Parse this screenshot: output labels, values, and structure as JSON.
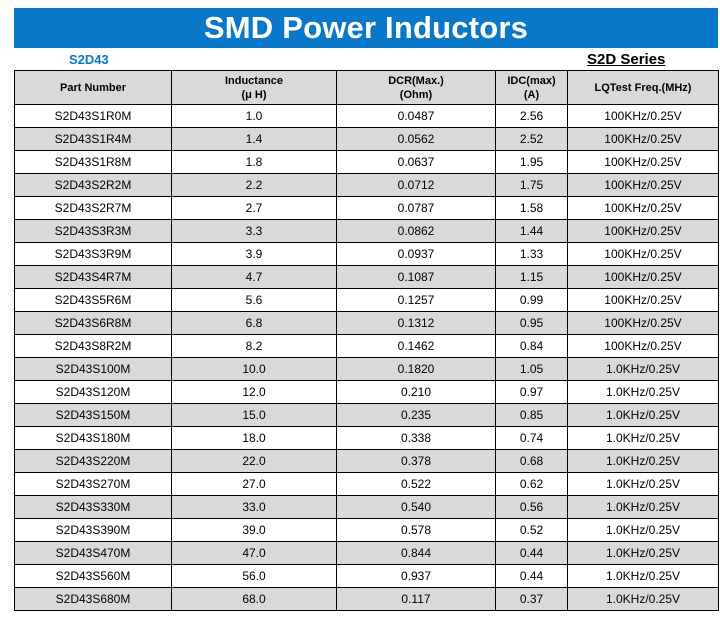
{
  "header": {
    "title": "SMD Power Inductors",
    "model_code": "S2D43",
    "series": "S2D Series"
  },
  "table": {
    "columns": [
      {
        "line1": "Part Number",
        "line2": ""
      },
      {
        "line1": "Inductance",
        "line2": "(μ H)"
      },
      {
        "line1": "DCR(Max.)",
        "line2": "(Ohm)"
      },
      {
        "line1": "IDC(max)",
        "line2": "(A)"
      },
      {
        "line1": "LQTest Freq.(MHz)",
        "line2": ""
      }
    ],
    "rows": [
      [
        "S2D43S1R0M",
        "1.0",
        "0.0487",
        "2.56",
        "100KHz/0.25V"
      ],
      [
        "S2D43S1R4M",
        "1.4",
        "0.0562",
        "2.52",
        "100KHz/0.25V"
      ],
      [
        "S2D43S1R8M",
        "1.8",
        "0.0637",
        "1.95",
        "100KHz/0.25V"
      ],
      [
        "S2D43S2R2M",
        "2.2",
        "0.0712",
        "1.75",
        "100KHz/0.25V"
      ],
      [
        "S2D43S2R7M",
        "2.7",
        "0.0787",
        "1.58",
        "100KHz/0.25V"
      ],
      [
        "S2D43S3R3M",
        "3.3",
        "0.0862",
        "1.44",
        "100KHz/0.25V"
      ],
      [
        "S2D43S3R9M",
        "3.9",
        "0.0937",
        "1.33",
        "100KHz/0.25V"
      ],
      [
        "S2D43S4R7M",
        "4.7",
        "0.1087",
        "1.15",
        "100KHz/0.25V"
      ],
      [
        "S2D43S5R6M",
        "5.6",
        "0.1257",
        "0.99",
        "100KHz/0.25V"
      ],
      [
        "S2D43S6R8M",
        "6.8",
        "0.1312",
        "0.95",
        "100KHz/0.25V"
      ],
      [
        "S2D43S8R2M",
        "8.2",
        "0.1462",
        "0.84",
        "100KHz/0.25V"
      ],
      [
        "S2D43S100M",
        "10.0",
        "0.1820",
        "1.05",
        "1.0KHz/0.25V"
      ],
      [
        "S2D43S120M",
        "12.0",
        "0.210",
        "0.97",
        "1.0KHz/0.25V"
      ],
      [
        "S2D43S150M",
        "15.0",
        "0.235",
        "0.85",
        "1.0KHz/0.25V"
      ],
      [
        "S2D43S180M",
        "18.0",
        "0.338",
        "0.74",
        "1.0KHz/0.25V"
      ],
      [
        "S2D43S220M",
        "22.0",
        "0.378",
        "0.68",
        "1.0KHz/0.25V"
      ],
      [
        "S2D43S270M",
        "27.0",
        "0.522",
        "0.62",
        "1.0KHz/0.25V"
      ],
      [
        "S2D43S330M",
        "33.0",
        "0.540",
        "0.56",
        "1.0KHz/0.25V"
      ],
      [
        "S2D43S390M",
        "39.0",
        "0.578",
        "0.52",
        "1.0KHz/0.25V"
      ],
      [
        "S2D43S470M",
        "47.0",
        "0.844",
        "0.44",
        "1.0KHz/0.25V"
      ],
      [
        "S2D43S560M",
        "56.0",
        "0.937",
        "0.44",
        "1.0KHz/0.25V"
      ],
      [
        "S2D43S680M",
        "68.0",
        "0.117",
        "0.37",
        "1.0KHz/0.25V"
      ]
    ]
  },
  "colors": {
    "banner": "#0a78c8",
    "header_fill": "#d9d9d9",
    "stripe": "#d9d9d9"
  }
}
